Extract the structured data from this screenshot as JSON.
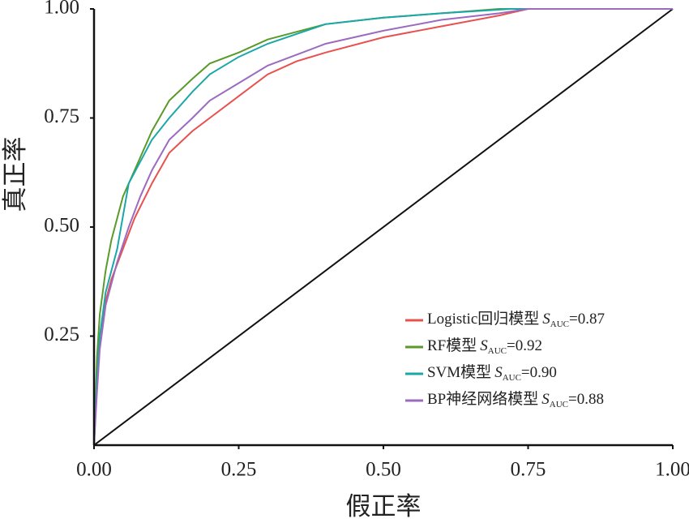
{
  "chart_data": {
    "type": "line",
    "xlabel": "假正率",
    "ylabel": "真正率",
    "xlim": [
      0,
      1
    ],
    "ylim": [
      0,
      1
    ],
    "xticks": [
      {
        "value": 0,
        "label": "0.00"
      },
      {
        "value": 0.25,
        "label": "0.25"
      },
      {
        "value": 0.5,
        "label": "0.50"
      },
      {
        "value": 0.75,
        "label": "0.75"
      },
      {
        "value": 1,
        "label": "1.00"
      }
    ],
    "yticks": [
      {
        "value": 0.25,
        "label": "0.25"
      },
      {
        "value": 0.5,
        "label": "0.50"
      },
      {
        "value": 0.75,
        "label": "0.75"
      },
      {
        "value": 1,
        "label": "1.00"
      }
    ],
    "legend": "lower right",
    "auc_symbol": "S",
    "auc_subscript": "AUC",
    "series": [
      {
        "name": "Logistic回归模型",
        "auc_text": "=0.87",
        "color": "#e8514f",
        "x": [
          0,
          0.005,
          0.01,
          0.02,
          0.03,
          0.05,
          0.07,
          0.1,
          0.13,
          0.17,
          0.2,
          0.25,
          0.3,
          0.35,
          0.4,
          0.5,
          0.6,
          0.7,
          0.75,
          1
        ],
        "values": [
          0,
          0.15,
          0.25,
          0.33,
          0.38,
          0.45,
          0.52,
          0.6,
          0.67,
          0.72,
          0.75,
          0.8,
          0.85,
          0.88,
          0.9,
          0.935,
          0.96,
          0.985,
          1,
          1
        ]
      },
      {
        "name": "RF模型",
        "auc_text": "=0.92",
        "color": "#5a9a2a",
        "x": [
          0,
          0.005,
          0.01,
          0.02,
          0.03,
          0.05,
          0.07,
          0.1,
          0.13,
          0.17,
          0.2,
          0.25,
          0.3,
          0.4,
          0.5,
          0.6,
          0.7,
          1
        ],
        "values": [
          0,
          0.2,
          0.3,
          0.4,
          0.47,
          0.57,
          0.63,
          0.72,
          0.79,
          0.84,
          0.875,
          0.9,
          0.93,
          0.965,
          0.98,
          0.99,
          1,
          1
        ]
      },
      {
        "name": "SVM模型",
        "auc_text": "=0.90",
        "color": "#1aa7a8",
        "x": [
          0,
          0.005,
          0.01,
          0.02,
          0.04,
          0.06,
          0.08,
          0.1,
          0.13,
          0.17,
          0.2,
          0.25,
          0.3,
          0.4,
          0.5,
          0.6,
          0.72,
          1
        ],
        "values": [
          0,
          0.15,
          0.25,
          0.35,
          0.45,
          0.6,
          0.65,
          0.7,
          0.75,
          0.81,
          0.85,
          0.89,
          0.92,
          0.965,
          0.98,
          0.99,
          1,
          1
        ]
      },
      {
        "name": "BP神经网络模型",
        "auc_text": "=0.88",
        "color": "#9b6bc0",
        "x": [
          0,
          0.005,
          0.01,
          0.02,
          0.04,
          0.06,
          0.08,
          0.1,
          0.13,
          0.17,
          0.2,
          0.25,
          0.3,
          0.4,
          0.5,
          0.6,
          0.7,
          0.75,
          1
        ],
        "values": [
          0,
          0.12,
          0.22,
          0.32,
          0.42,
          0.5,
          0.57,
          0.63,
          0.7,
          0.75,
          0.79,
          0.83,
          0.87,
          0.92,
          0.95,
          0.975,
          0.99,
          1,
          1
        ]
      }
    ]
  }
}
